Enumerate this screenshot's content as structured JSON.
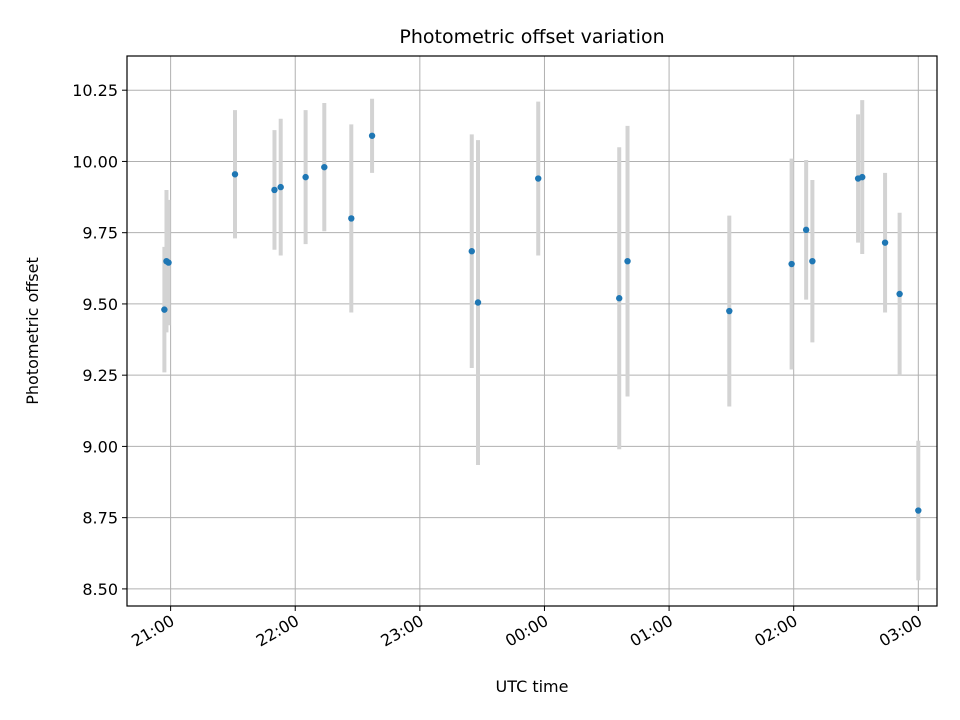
{
  "chart_data": {
    "type": "scatter",
    "title": "Photometric offset variation",
    "xlabel": "UTC time",
    "ylabel": "Photometric offset",
    "x_tick_labels": [
      "21:00",
      "22:00",
      "23:00",
      "00:00",
      "01:00",
      "02:00",
      "03:00"
    ],
    "y_tick_labels": [
      "8.50",
      "8.75",
      "9.00",
      "9.25",
      "9.50",
      "9.75",
      "10.00",
      "10.25"
    ],
    "xlim": [
      "20:39",
      "03:09"
    ],
    "ylim": [
      8.44,
      10.37
    ],
    "grid": true,
    "point_color": "#1f77b4",
    "errorbar_color": "#d3d3d3",
    "series": [
      {
        "points": [
          {
            "x": "20:57",
            "y": 9.48,
            "err": 0.22
          },
          {
            "x": "20:58",
            "y": 9.65,
            "err": 0.25
          },
          {
            "x": "20:59",
            "y": 9.645,
            "err": 0.22
          },
          {
            "x": "21:31",
            "y": 9.955,
            "err": 0.225
          },
          {
            "x": "21:50",
            "y": 9.9,
            "err": 0.21
          },
          {
            "x": "21:53",
            "y": 9.91,
            "err": 0.24
          },
          {
            "x": "22:05",
            "y": 9.945,
            "err": 0.235
          },
          {
            "x": "22:14",
            "y": 9.98,
            "err": 0.225
          },
          {
            "x": "22:27",
            "y": 9.8,
            "err": 0.33
          },
          {
            "x": "22:37",
            "y": 10.09,
            "err": 0.13
          },
          {
            "x": "23:25",
            "y": 9.685,
            "err": 0.41
          },
          {
            "x": "23:28",
            "y": 9.505,
            "err": 0.57
          },
          {
            "x": "23:57",
            "y": 9.94,
            "err": 0.27
          },
          {
            "x": "00:36",
            "y": 9.52,
            "err": 0.53
          },
          {
            "x": "00:40",
            "y": 9.65,
            "err": 0.475
          },
          {
            "x": "01:29",
            "y": 9.475,
            "err": 0.335
          },
          {
            "x": "01:59",
            "y": 9.64,
            "err": 0.37
          },
          {
            "x": "02:06",
            "y": 9.76,
            "err": 0.245
          },
          {
            "x": "02:09",
            "y": 9.65,
            "err": 0.285
          },
          {
            "x": "02:31",
            "y": 9.94,
            "err": 0.225
          },
          {
            "x": "02:33",
            "y": 9.945,
            "err": 0.27
          },
          {
            "x": "02:44",
            "y": 9.715,
            "err": 0.245
          },
          {
            "x": "02:51",
            "y": 9.535,
            "err": 0.285
          },
          {
            "x": "03:00",
            "y": 8.775,
            "err": 0.245
          }
        ]
      }
    ]
  }
}
